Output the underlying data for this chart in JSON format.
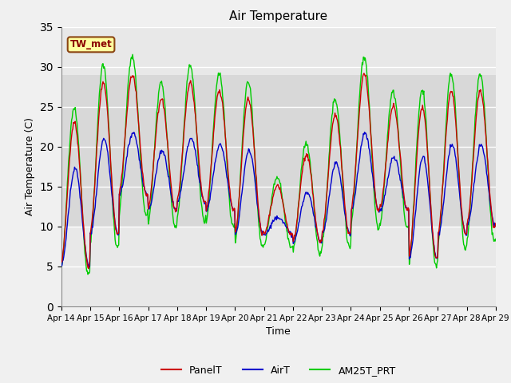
{
  "title": "Air Temperature",
  "xlabel": "Time",
  "ylabel": "Air Temperature (C)",
  "ylim": [
    0,
    35
  ],
  "yticks": [
    0,
    5,
    10,
    15,
    20,
    25,
    30,
    35
  ],
  "shade_band": [
    10,
    29
  ],
  "annotation_label": "TW_met",
  "line_colors": {
    "PanelT": "#cc0000",
    "AirT": "#0000cc",
    "AM25T_PRT": "#00cc00"
  },
  "legend_labels": [
    "PanelT",
    "AirT",
    "AM25T_PRT"
  ],
  "fig_facecolor": "#f0f0f0",
  "axes_facecolor": "#e8e8e8",
  "shade_color": "#d8d8d8",
  "grid_color": "#ffffff",
  "n_days": 15,
  "samples_per_day": 48,
  "start_day": 14,
  "daily_highs": [
    23,
    28,
    29,
    26,
    28,
    27,
    26,
    15,
    19,
    24,
    29,
    25,
    25,
    27,
    27
  ],
  "daily_lows": [
    5,
    9,
    14,
    12,
    13,
    12,
    9,
    9,
    8,
    9,
    12,
    12,
    6,
    9,
    10
  ]
}
